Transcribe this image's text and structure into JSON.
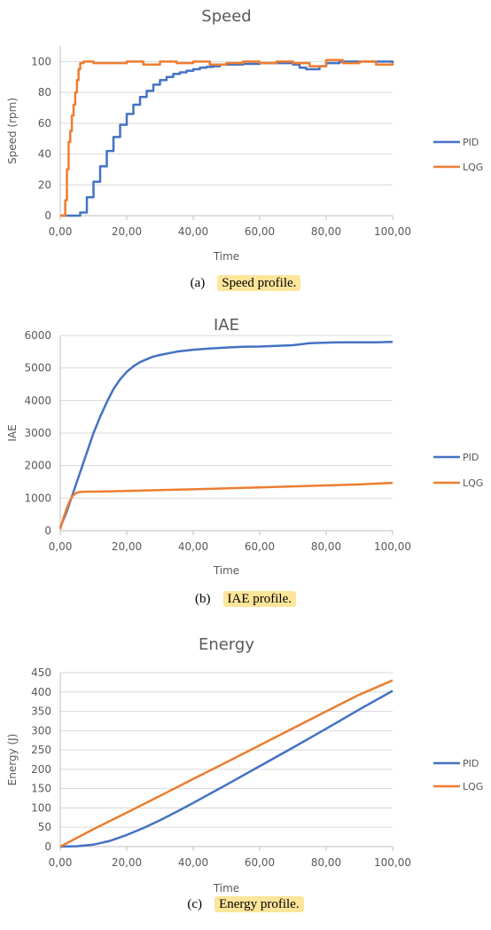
{
  "chart_data": [
    {
      "type": "line",
      "title": "Speed",
      "xlabel": "Time",
      "ylabel": "Speed (rpm)",
      "xlim": [
        0,
        100
      ],
      "ylim": [
        0,
        110
      ],
      "xticks": [
        "0,00",
        "20,00",
        "40,00",
        "60,00",
        "80,00",
        "100,00"
      ],
      "yticks": [
        "0",
        "20",
        "40",
        "60",
        "80",
        "100"
      ],
      "grid": true,
      "legend": "right",
      "series": [
        {
          "name": "PID",
          "color": "#4472C4",
          "x": [
            0,
            5,
            6,
            8,
            10,
            12,
            14,
            16,
            18,
            20,
            22,
            24,
            26,
            28,
            30,
            32,
            34,
            36,
            38,
            40,
            42,
            44,
            46,
            48,
            50,
            55,
            60,
            65,
            70,
            72,
            74,
            76,
            78,
            80,
            84,
            88,
            92,
            96,
            100
          ],
          "y": [
            0,
            0,
            2,
            12,
            22,
            32,
            42,
            51,
            59,
            66,
            72,
            77,
            81,
            85,
            88,
            90,
            92,
            93,
            94,
            95,
            96,
            96.5,
            97,
            98,
            98,
            98.5,
            99,
            99,
            98,
            96,
            95,
            95,
            97,
            99,
            100,
            100,
            100,
            100,
            99
          ]
        },
        {
          "name": "LQG",
          "color": "#ED7D31",
          "x": [
            0,
            1,
            1.5,
            2,
            2.5,
            3,
            3.5,
            4,
            4.5,
            5,
            5.5,
            6,
            7,
            10,
            15,
            20,
            25,
            30,
            35,
            40,
            45,
            50,
            55,
            60,
            65,
            70,
            75,
            80,
            85,
            90,
            95,
            100
          ],
          "y": [
            0,
            0,
            10,
            30,
            48,
            55,
            65,
            72,
            80,
            88,
            95,
            99,
            100,
            99,
            99,
            100,
            98,
            100,
            99,
            100,
            98,
            99,
            100,
            99,
            100,
            99,
            97,
            101,
            99,
            100,
            98,
            99
          ]
        }
      ]
    },
    {
      "type": "line",
      "title": "IAE",
      "xlabel": "Time",
      "ylabel": "IAE",
      "xlim": [
        0,
        100
      ],
      "ylim": [
        0,
        6000
      ],
      "xticks": [
        "0,00",
        "20,00",
        "40,00",
        "60,00",
        "80,00",
        "100,00"
      ],
      "yticks": [
        "0",
        "1000",
        "2000",
        "3000",
        "4000",
        "5000",
        "6000"
      ],
      "grid": true,
      "legend": "right",
      "series": [
        {
          "name": "PID",
          "color": "#4472C4",
          "x": [
            0,
            2,
            4,
            6,
            8,
            10,
            12,
            14,
            16,
            18,
            20,
            22,
            24,
            26,
            28,
            30,
            35,
            40,
            45,
            50,
            55,
            60,
            65,
            70,
            75,
            80,
            85,
            90,
            95,
            100
          ],
          "y": [
            100,
            600,
            1200,
            1800,
            2400,
            3000,
            3500,
            3950,
            4350,
            4650,
            4880,
            5050,
            5180,
            5270,
            5350,
            5400,
            5500,
            5560,
            5600,
            5630,
            5650,
            5660,
            5680,
            5700,
            5760,
            5780,
            5790,
            5790,
            5790,
            5800
          ]
        },
        {
          "name": "LQG",
          "color": "#ED7D31",
          "x": [
            0,
            1,
            2,
            3,
            4,
            5,
            6,
            8,
            10,
            20,
            30,
            40,
            50,
            60,
            70,
            80,
            90,
            100
          ],
          "y": [
            50,
            400,
            700,
            950,
            1100,
            1170,
            1190,
            1200,
            1200,
            1220,
            1250,
            1270,
            1300,
            1330,
            1360,
            1390,
            1420,
            1470
          ]
        }
      ]
    },
    {
      "type": "line",
      "title": "Energy",
      "xlabel": "Time",
      "ylabel": "Energy (J)",
      "xlim": [
        0,
        100
      ],
      "ylim": [
        0,
        450
      ],
      "xticks": [
        "0,00",
        "20,00",
        "40,00",
        "60,00",
        "80,00",
        "100,00"
      ],
      "yticks": [
        "0",
        "50",
        "100",
        "150",
        "200",
        "250",
        "300",
        "350",
        "400",
        "450"
      ],
      "grid": true,
      "legend": "right",
      "series": [
        {
          "name": "PID",
          "color": "#4472C4",
          "x": [
            0,
            5,
            10,
            15,
            20,
            25,
            30,
            35,
            40,
            50,
            60,
            70,
            80,
            90,
            100
          ],
          "y": [
            0,
            1,
            5,
            15,
            30,
            48,
            68,
            90,
            113,
            160,
            208,
            256,
            305,
            355,
            403
          ]
        },
        {
          "name": "LQG",
          "color": "#ED7D31",
          "x": [
            0,
            10,
            20,
            30,
            40,
            50,
            60,
            70,
            80,
            90,
            100
          ],
          "y": [
            0,
            45,
            88,
            131,
            175,
            218,
            262,
            306,
            350,
            393,
            430
          ]
        }
      ]
    }
  ],
  "captions": [
    {
      "tag": "(a)",
      "text": "Speed profile."
    },
    {
      "tag": "(b)",
      "text": "IAE profile."
    },
    {
      "tag": "(c)",
      "text": "Energy profile."
    }
  ]
}
